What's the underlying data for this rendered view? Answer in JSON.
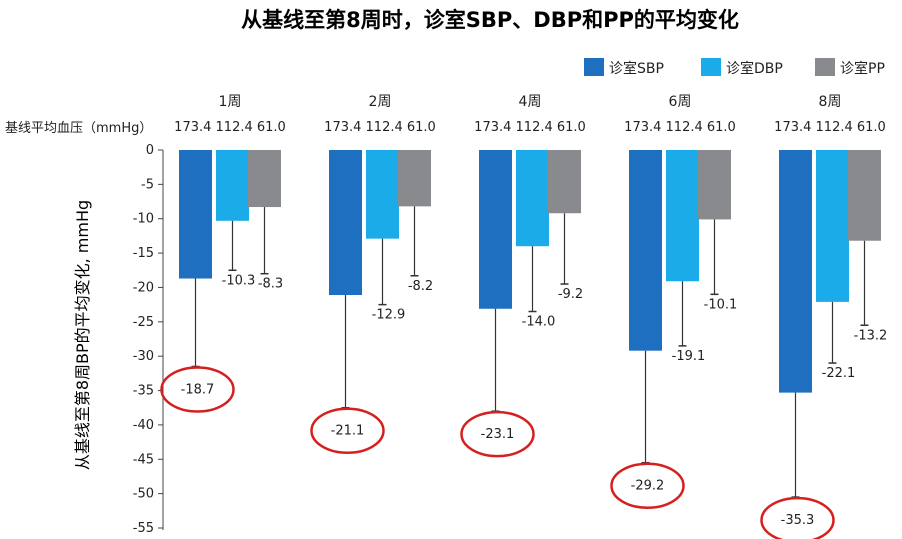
{
  "chart_data": {
    "type": "bar",
    "title": "从基线至第8周时，诊室SBP、DBP和PP的平均变化",
    "ylabel": "从基线至第8周BP的平均变化, mmHg",
    "baseline_label": "基线平均血压（mmHg）",
    "categories": [
      "1周",
      "2周",
      "4周",
      "6周",
      "8周"
    ],
    "baseline_values": [
      "173.4 112.4 61.0",
      "173.4 112.4 61.0",
      "173.4 112.4 61.0",
      "173.4 112.4 61.0",
      "173.4 112.4 61.0"
    ],
    "ylim": [
      -55,
      0
    ],
    "yticks": [
      0,
      -5,
      -10,
      -15,
      -20,
      -25,
      -30,
      -35,
      -40,
      -45,
      -50,
      -55
    ],
    "legend_position": "top-right",
    "series": [
      {
        "name": "诊室SBP",
        "color": "#1F6FC0",
        "values": [
          -18.7,
          -21.1,
          -23.1,
          -29.2,
          -35.3
        ],
        "error_low": [
          -31.5,
          -37.5,
          -38.0,
          -45.5,
          -50.5
        ],
        "labels": [
          "-18.7",
          "-21.1",
          "-23.1",
          "-29.2",
          "-35.3"
        ],
        "circled": true
      },
      {
        "name": "诊室DBP",
        "color": "#1AABE8",
        "values": [
          -10.3,
          -12.9,
          -14.0,
          -19.1,
          -22.1
        ],
        "error_low": [
          -17.5,
          -22.5,
          -23.5,
          -28.5,
          -31.0
        ],
        "labels": [
          "-10.3",
          "-12.9",
          "-14.0",
          "-19.1",
          "-22.1"
        ],
        "circled": false
      },
      {
        "name": "诊室PP",
        "color": "#888A8D",
        "values": [
          -8.3,
          -8.2,
          -9.2,
          -10.1,
          -13.2
        ],
        "error_low": [
          -18.0,
          -18.3,
          -19.5,
          -21.0,
          -25.5
        ],
        "labels": [
          "-8.3",
          "-8.2",
          "-9.2",
          "-10.1",
          "-13.2"
        ],
        "circled": false
      }
    ],
    "highlight_color": "#D62020",
    "grid": false
  }
}
